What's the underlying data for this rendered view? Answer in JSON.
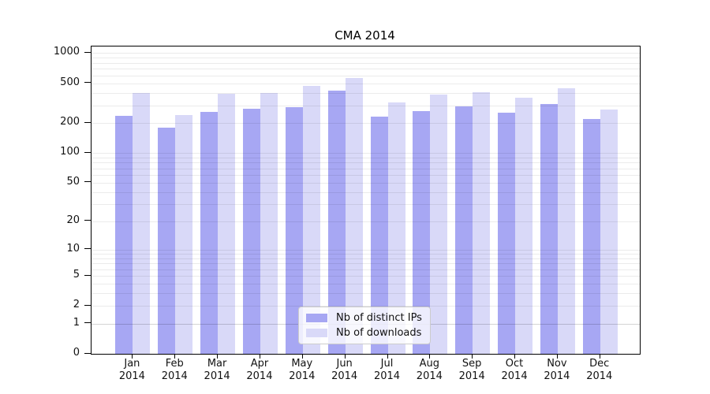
{
  "title": "CMA 2014",
  "chart_data": {
    "type": "bar",
    "title": "CMA 2014",
    "categories": [
      "Jan",
      "Feb",
      "Mar",
      "Apr",
      "May",
      "Jun",
      "Jul",
      "Aug",
      "Sep",
      "Oct",
      "Nov",
      "Dec"
    ],
    "year": "2014",
    "series": [
      {
        "name": "Nb of distinct IPs",
        "color": "#a7a7f3",
        "values": [
          235,
          180,
          258,
          280,
          290,
          420,
          230,
          265,
          295,
          255,
          310,
          220
        ]
      },
      {
        "name": "Nb of downloads",
        "color": "#d9d9f8",
        "values": [
          400,
          240,
          390,
          400,
          470,
          565,
          320,
          385,
          405,
          355,
          445,
          275
        ]
      }
    ],
    "xlabel": "",
    "ylabel": "",
    "yscale": "log1p",
    "yticks": [
      0,
      1,
      2,
      5,
      10,
      20,
      50,
      100,
      200,
      500,
      1000
    ],
    "ylim": [
      0,
      1160
    ],
    "grid": "horizontal minor log gridlines",
    "legend_position": "lower center",
    "legend_border_color": "#cccccc"
  }
}
